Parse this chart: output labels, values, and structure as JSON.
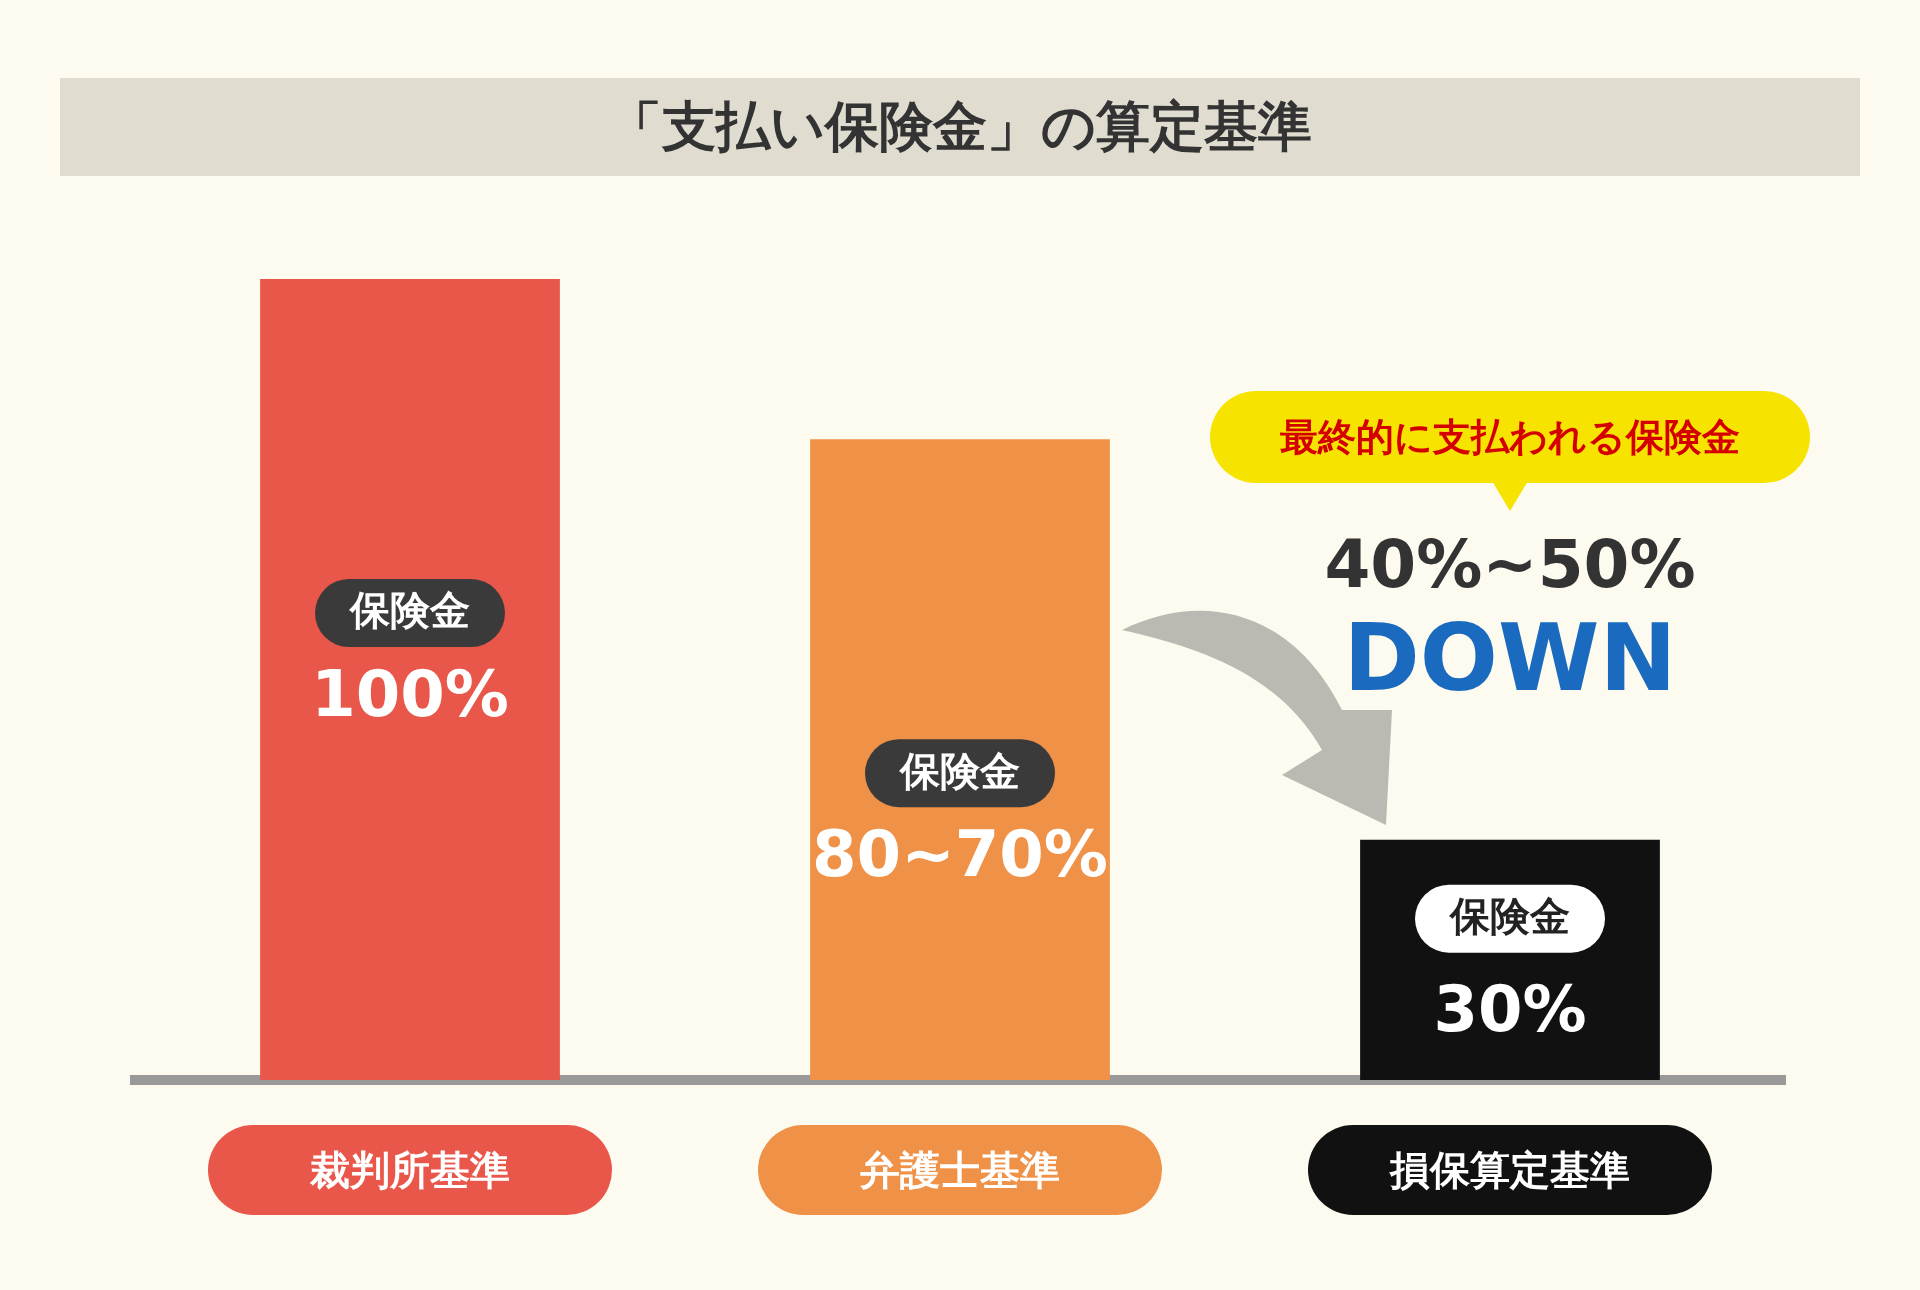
{
  "chart_data": {
    "type": "bar",
    "title": "「支払い保険金」の算定基準",
    "categories": [
      "裁判所基準",
      "弁護士基準",
      "損保算定基準"
    ],
    "values": [
      100,
      80,
      30
    ],
    "colors": [
      "#e9564a",
      "#ef9147",
      "#111111"
    ],
    "value_labels": [
      "100%",
      "80~70%",
      "30%"
    ],
    "ylim": [
      0,
      100
    ],
    "tick_labels": "x",
    "annotations": [
      "保険金",
      "保険金",
      "保険金",
      "最終的に支払われる保険金",
      "40%~50%",
      "DOWN"
    ],
    "grid": false,
    "legend": false
  }
}
